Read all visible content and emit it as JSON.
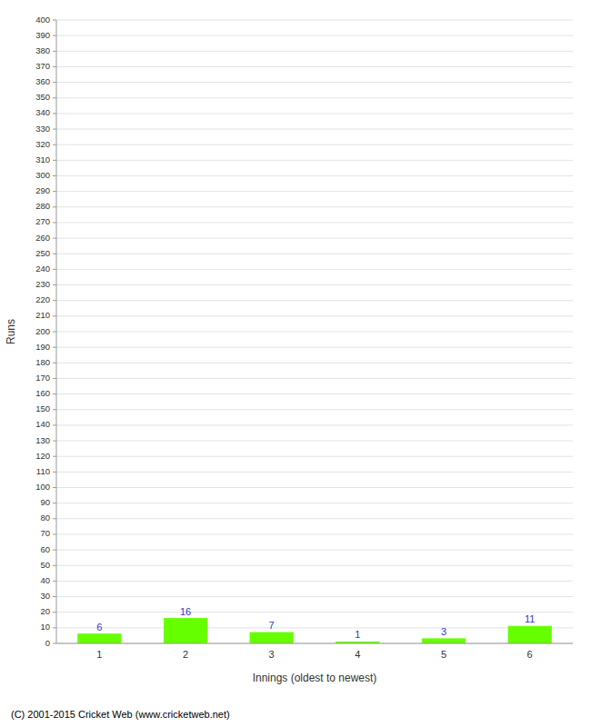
{
  "chart_data": {
    "type": "bar",
    "categories": [
      "1",
      "2",
      "3",
      "4",
      "5",
      "6"
    ],
    "values": [
      6,
      16,
      7,
      1,
      3,
      11
    ],
    "color": "#66ff00",
    "xlabel": "Innings (oldest to newest)",
    "ylabel": "Runs",
    "ylim": [
      0,
      400
    ],
    "yticks": [
      0,
      10,
      20,
      30,
      40,
      50,
      60,
      70,
      80,
      90,
      100,
      110,
      120,
      130,
      140,
      150,
      160,
      170,
      180,
      190,
      200,
      210,
      220,
      230,
      240,
      250,
      260,
      270,
      280,
      290,
      300,
      310,
      320,
      330,
      340,
      350,
      360,
      370,
      380,
      390,
      400
    ],
    "grid": true,
    "data_labels": true,
    "annotations": [
      "(C) 2001-2015 Cricket Web (www.cricketweb.net)"
    ]
  }
}
